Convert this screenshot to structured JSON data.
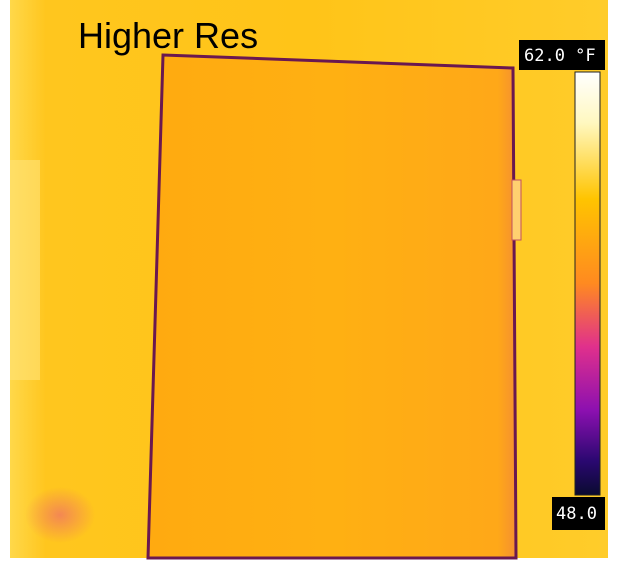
{
  "label": "Higher Res",
  "scale": {
    "max": "62.0 °F",
    "min": "48.0"
  }
}
